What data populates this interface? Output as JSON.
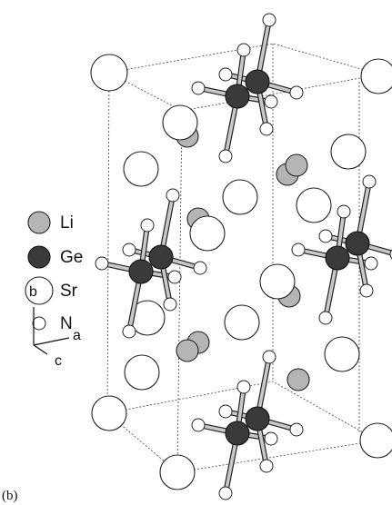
{
  "legend": {
    "items": [
      {
        "label": "Li"
      },
      {
        "label": "Ge"
      },
      {
        "label": "Sr"
      },
      {
        "label": "N"
      }
    ]
  },
  "axes": {
    "b": "b",
    "a": "a",
    "c": "c"
  },
  "caption": "(b)"
}
